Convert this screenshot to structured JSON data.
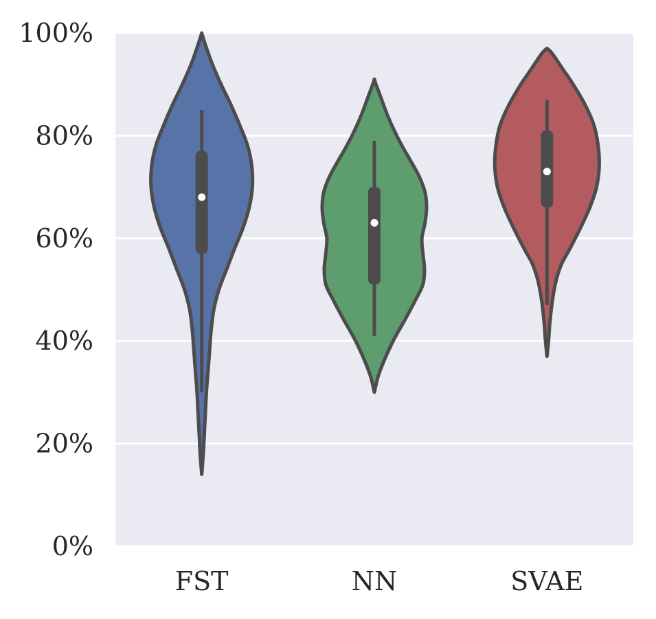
{
  "chart_data": {
    "type": "violin",
    "categories": [
      "FST",
      "NN",
      "SVAE"
    ],
    "ylim": [
      0,
      100
    ],
    "yticks": [
      "0%",
      "20%",
      "40%",
      "60%",
      "80%",
      "100%"
    ],
    "ytick_values": [
      0,
      20,
      40,
      60,
      80,
      100
    ],
    "grid": true,
    "background": "#eaeaf2",
    "outline_color": "#4c4c4c",
    "series": [
      {
        "category": "FST",
        "color": "#5873a8",
        "min": 30,
        "q1": 57,
        "median": 68,
        "q3": 77,
        "max": 85,
        "range": [
          14,
          100
        ],
        "density": [
          [
            14,
            0.0
          ],
          [
            18,
            0.03
          ],
          [
            22,
            0.05
          ],
          [
            26,
            0.07
          ],
          [
            30,
            0.09
          ],
          [
            34,
            0.12
          ],
          [
            38,
            0.15
          ],
          [
            42,
            0.18
          ],
          [
            46,
            0.23
          ],
          [
            50,
            0.33
          ],
          [
            54,
            0.48
          ],
          [
            58,
            0.63
          ],
          [
            62,
            0.79
          ],
          [
            66,
            0.91
          ],
          [
            70,
            0.97
          ],
          [
            74,
            0.96
          ],
          [
            78,
            0.88
          ],
          [
            82,
            0.73
          ],
          [
            86,
            0.56
          ],
          [
            90,
            0.37
          ],
          [
            94,
            0.2
          ],
          [
            98,
            0.06
          ],
          [
            100,
            0.0
          ]
        ]
      },
      {
        "category": "NN",
        "color": "#5e9e6e",
        "min": 41,
        "q1": 51,
        "median": 63,
        "q3": 70,
        "max": 79,
        "range": [
          30,
          91
        ],
        "density": [
          [
            30,
            0.0
          ],
          [
            33,
            0.07
          ],
          [
            36,
            0.18
          ],
          [
            40,
            0.36
          ],
          [
            44,
            0.58
          ],
          [
            48,
            0.79
          ],
          [
            51,
            0.93
          ],
          [
            54,
            0.96
          ],
          [
            57,
            0.93
          ],
          [
            60,
            0.91
          ],
          [
            63,
            0.97
          ],
          [
            66,
            1.0
          ],
          [
            69,
            0.97
          ],
          [
            72,
            0.86
          ],
          [
            75,
            0.7
          ],
          [
            78,
            0.53
          ],
          [
            81,
            0.38
          ],
          [
            84,
            0.25
          ],
          [
            87,
            0.14
          ],
          [
            90,
            0.03
          ],
          [
            91,
            0.0
          ]
        ]
      },
      {
        "category": "SVAE",
        "color": "#b45b60",
        "min": 47,
        "q1": 66,
        "median": 73,
        "q3": 81,
        "max": 87,
        "range": [
          37,
          97
        ],
        "density": [
          [
            37,
            0.0
          ],
          [
            40,
            0.03
          ],
          [
            43,
            0.05
          ],
          [
            46,
            0.08
          ],
          [
            49,
            0.12
          ],
          [
            52,
            0.18
          ],
          [
            55,
            0.28
          ],
          [
            58,
            0.44
          ],
          [
            62,
            0.64
          ],
          [
            66,
            0.82
          ],
          [
            70,
            0.95
          ],
          [
            74,
            1.0
          ],
          [
            78,
            0.98
          ],
          [
            82,
            0.9
          ],
          [
            86,
            0.73
          ],
          [
            90,
            0.5
          ],
          [
            93,
            0.3
          ],
          [
            96,
            0.1
          ],
          [
            97,
            0.0
          ]
        ]
      }
    ]
  }
}
